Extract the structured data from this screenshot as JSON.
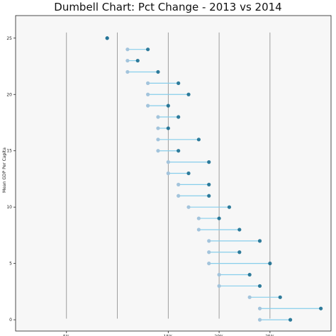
{
  "chart_data": {
    "type": "dumbbell",
    "title": "Dumbell Chart: Pct Change - 2013 vs 2014",
    "xlabel": "",
    "ylabel": "Mean GDP Per Capita",
    "xlim": [
      0.0,
      0.31
    ],
    "ylim": [
      -1,
      27
    ],
    "x_ticks": [
      0.05,
      0.15,
      0.2,
      0.25
    ],
    "x_tick_labels": [
      "5%",
      "15%",
      "20%",
      "25%"
    ],
    "y_ticks": [
      0,
      5,
      10,
      15,
      20,
      25
    ],
    "y_tick_labels": [
      "0",
      "5",
      "10",
      "15",
      "20",
      "25"
    ],
    "vertical_lines_at": [
      0.05,
      0.1,
      0.15,
      0.2,
      0.25
    ],
    "background": "#f7f7f7",
    "colors": {
      "pct_2013": "#a3c4dc",
      "pct_2014": "#0e668b",
      "connector": "#87ceeb",
      "vline": "#888888"
    },
    "rows": [
      {
        "y": 0,
        "pct_2013": 0.24,
        "pct_2014": 0.27
      },
      {
        "y": 1,
        "pct_2013": 0.24,
        "pct_2014": 0.3
      },
      {
        "y": 2,
        "pct_2013": 0.23,
        "pct_2014": 0.26
      },
      {
        "y": 3,
        "pct_2013": 0.2,
        "pct_2014": 0.24
      },
      {
        "y": 4,
        "pct_2013": 0.2,
        "pct_2014": 0.23
      },
      {
        "y": 5,
        "pct_2013": 0.19,
        "pct_2014": 0.25
      },
      {
        "y": 6,
        "pct_2013": 0.19,
        "pct_2014": 0.22
      },
      {
        "y": 7,
        "pct_2013": 0.19,
        "pct_2014": 0.24
      },
      {
        "y": 8,
        "pct_2013": 0.18,
        "pct_2014": 0.22
      },
      {
        "y": 9,
        "pct_2013": 0.18,
        "pct_2014": 0.2
      },
      {
        "y": 10,
        "pct_2013": 0.17,
        "pct_2014": 0.21
      },
      {
        "y": 11,
        "pct_2013": 0.16,
        "pct_2014": 0.19
      },
      {
        "y": 12,
        "pct_2013": 0.16,
        "pct_2014": 0.19
      },
      {
        "y": 13,
        "pct_2013": 0.15,
        "pct_2014": 0.17
      },
      {
        "y": 14,
        "pct_2013": 0.15,
        "pct_2014": 0.19
      },
      {
        "y": 15,
        "pct_2013": 0.14,
        "pct_2014": 0.16
      },
      {
        "y": 16,
        "pct_2013": 0.14,
        "pct_2014": 0.18
      },
      {
        "y": 17,
        "pct_2013": 0.14,
        "pct_2014": 0.15
      },
      {
        "y": 18,
        "pct_2013": 0.14,
        "pct_2014": 0.16
      },
      {
        "y": 19,
        "pct_2013": 0.13,
        "pct_2014": 0.15
      },
      {
        "y": 20,
        "pct_2013": 0.13,
        "pct_2014": 0.17
      },
      {
        "y": 21,
        "pct_2013": 0.13,
        "pct_2014": 0.16
      },
      {
        "y": 22,
        "pct_2013": 0.11,
        "pct_2014": 0.14
      },
      {
        "y": 23,
        "pct_2013": 0.11,
        "pct_2014": 0.12
      },
      {
        "y": 24,
        "pct_2013": 0.11,
        "pct_2014": 0.13
      },
      {
        "y": 25,
        "pct_2013": 0.09,
        "pct_2014": 0.09
      }
    ]
  }
}
